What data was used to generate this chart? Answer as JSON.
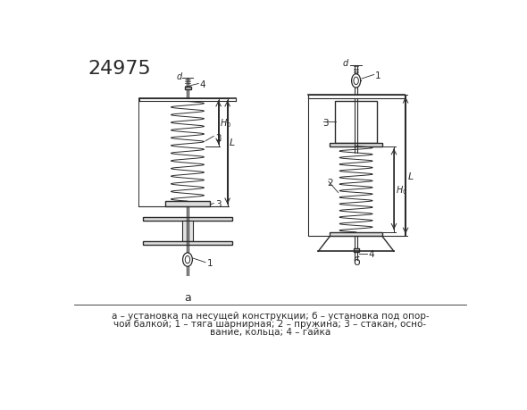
{
  "title_number": "24975",
  "bg_color": "#ffffff",
  "line_color": "#2a2a2a",
  "caption_line1": "а – установка па несущей конструкции; б – установка под опор-",
  "caption_line2": "чой балкой; 1 – тяга шарнирная; 2 – пружина; 3 – стакан, осно-",
  "caption_line3": "вание, кольца; 4 – гайка",
  "title_fontsize": 16,
  "caption_fontsize": 7.5
}
